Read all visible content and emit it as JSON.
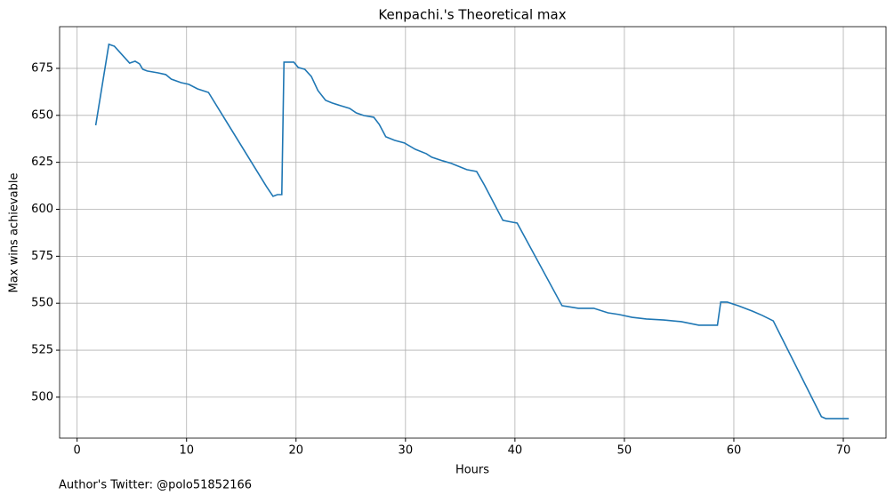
{
  "chart_data": {
    "type": "line",
    "title": "Kenpachi.'s Theoretical max",
    "xlabel": "Hours",
    "ylabel": "Max wins achievable",
    "annotation": "Author's Twitter: @polo51852166",
    "xlim": [
      -1.6,
      73.9
    ],
    "ylim": [
      478.2,
      697.2
    ],
    "xticks": [
      0,
      10,
      20,
      30,
      40,
      50,
      60,
      70
    ],
    "yticks": [
      500,
      525,
      550,
      575,
      600,
      625,
      650,
      675
    ],
    "grid": true,
    "series": [
      {
        "name": "Max wins achievable",
        "color": "#1f77b4",
        "x": [
          1.7,
          2.9,
          3.4,
          4.8,
          5.3,
          5.7,
          6.0,
          6.4,
          7.4,
          8.1,
          8.6,
          9.5,
          10.2,
          11.0,
          12.0,
          17.3,
          17.9,
          18.3,
          18.7,
          18.9,
          19.8,
          20.2,
          20.8,
          21.4,
          22.0,
          22.7,
          23.3,
          24.1,
          24.9,
          25.5,
          26.2,
          27.1,
          27.6,
          28.2,
          29.0,
          29.9,
          30.9,
          31.9,
          32.4,
          33.4,
          34.2,
          35.6,
          36.5,
          37.2,
          38.9,
          39.7,
          40.2,
          44.3,
          45.8,
          47.2,
          48.5,
          49.5,
          50.7,
          52.0,
          53.6,
          55.2,
          56.8,
          58.5,
          58.8,
          59.4,
          60.4,
          61.7,
          62.6,
          63.6,
          68.0,
          68.4,
          70.5
        ],
        "values": [
          644.7,
          687.8,
          686.8,
          677.8,
          678.8,
          677.4,
          674.5,
          673.6,
          672.6,
          671.7,
          669.3,
          667.4,
          666.5,
          664.1,
          662.2,
          612.1,
          606.9,
          607.8,
          607.8,
          678.3,
          678.3,
          675.5,
          674.5,
          670.7,
          663.2,
          658.0,
          656.6,
          655.1,
          653.7,
          651.3,
          649.9,
          649.0,
          645.2,
          638.6,
          636.7,
          635.3,
          631.9,
          629.6,
          627.7,
          625.8,
          624.4,
          621.1,
          620.1,
          613.0,
          594.1,
          593.2,
          592.7,
          548.7,
          547.3,
          547.3,
          544.9,
          544.0,
          542.5,
          541.6,
          541.1,
          540.2,
          538.3,
          538.3,
          550.6,
          550.6,
          548.7,
          545.8,
          543.5,
          540.6,
          489.6,
          488.6,
          488.6
        ]
      }
    ]
  }
}
